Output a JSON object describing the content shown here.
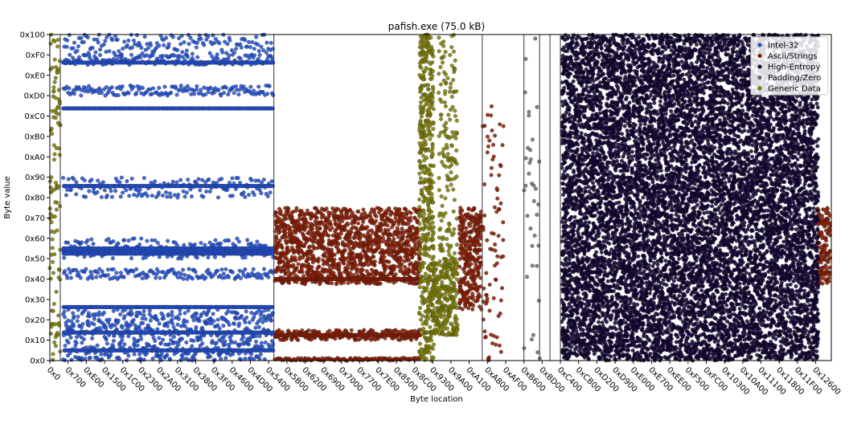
{
  "chart_data": {
    "type": "scatter",
    "title": "pafish.exe (75.0 kB)",
    "xlabel": "Byte location",
    "ylabel": "Byte value",
    "xlim": [
      0,
      76800
    ],
    "ylim": [
      0,
      256
    ],
    "grid": false,
    "legend_position": "top-right",
    "x_tick_labels": [
      "0x0",
      "0x700",
      "0xE00",
      "0x1500",
      "0x1C00",
      "0x2300",
      "0x2A00",
      "0x3100",
      "0x3800",
      "0x3F00",
      "0x4600",
      "0x4D00",
      "0x5400",
      "0x5B00",
      "0x6200",
      "0x6900",
      "0x7000",
      "0x7700",
      "0x7E00",
      "0x8500",
      "0x8C00",
      "0x9300",
      "0x9A00",
      "0xA100",
      "0xA800",
      "0xAF00",
      "0xB600",
      "0xBD00",
      "0xC400",
      "0xCB00",
      "0xD200",
      "0xD900",
      "0xE000",
      "0xE700",
      "0xEE00",
      "0xF500",
      "0xFC00",
      "0x10300",
      "0x10A00",
      "0x11100",
      "0x11800",
      "0x11F00",
      "0x12600"
    ],
    "y_ticks": [
      0,
      16,
      32,
      48,
      64,
      80,
      96,
      112,
      128,
      144,
      160,
      176,
      192,
      208,
      224,
      240,
      256
    ],
    "y_tick_labels": [
      "0x0",
      "0x10",
      "0x20",
      "0x30",
      "0x40",
      "0x50",
      "0x60",
      "0x70",
      "0x80",
      "0x90",
      "0xA0",
      "0xB0",
      "0xC0",
      "0xD0",
      "0xE0",
      "0xF0",
      "0x100"
    ],
    "section_boundaries": [
      1024,
      22016,
      42496,
      46592,
      48128,
      49152,
      50176
    ],
    "series": [
      {
        "name": "Intel-32",
        "color": "#1f4fd6",
        "segments": [
          {
            "x_range": [
              1300,
              21900
            ],
            "bands": [
              [
                0,
                40
              ],
              [
                64,
                72
              ],
              [
                80,
                96
              ],
              [
                128,
                144
              ],
              [
                208,
                216
              ],
              [
                232,
                240
              ],
              [
                240,
                256
              ]
            ],
            "fill": 0.35,
            "lines": [
              8,
              22,
              42,
              84,
              86,
              88,
              137,
              198,
              234
            ]
          }
        ]
      },
      {
        "name": "Ascii/Strings",
        "color": "#8b1a00",
        "segments": [
          {
            "x_range": [
              22100,
              36300
            ],
            "bands": [
              [
                60,
                120
              ],
              [
                16,
                24
              ],
              [
                0,
                2
              ]
            ],
            "fill": 0.85,
            "lines": [
              20,
              64
            ]
          },
          {
            "x_range": [
              40200,
              42300
            ],
            "bands": [
              [
                40,
                120
              ]
            ],
            "fill": 0.9,
            "lines": []
          },
          {
            "x_range": [
              42500,
              44500
            ],
            "bands": [
              [
                0,
                200
              ]
            ],
            "fill": 0.1,
            "lines": []
          },
          {
            "x_range": [
              75400,
              76600
            ],
            "bands": [
              [
                60,
                120
              ]
            ],
            "fill": 0.9,
            "lines": []
          }
        ]
      },
      {
        "name": "High-Entropy",
        "color": "#0d0030",
        "segments": [
          {
            "x_range": [
              50300,
              75500
            ],
            "bands": [
              [
                0,
                256
              ]
            ],
            "fill": 0.92,
            "lines": []
          }
        ]
      },
      {
        "name": "Padding/Zero",
        "color": "#6e6e6e",
        "segments": [
          {
            "x_range": [
              46600,
              48100
            ],
            "bands": [
              [
                0,
                256
              ]
            ],
            "fill": 0.05,
            "lines": []
          }
        ]
      },
      {
        "name": "Generic Data",
        "color": "#7d7d00",
        "segments": [
          {
            "x_range": [
              0,
              1000
            ],
            "bands": [
              [
                0,
                256
              ]
            ],
            "fill": 0.2,
            "lines": []
          },
          {
            "x_range": [
              36300,
              37600
            ],
            "bands": [
              [
                0,
                256
              ]
            ],
            "fill": 0.7,
            "lines": []
          },
          {
            "x_range": [
              37600,
              40000
            ],
            "bands": [
              [
                20,
                80
              ]
            ],
            "fill": 0.9,
            "lines": []
          },
          {
            "x_range": [
              38200,
              40000
            ],
            "bands": [
              [
                80,
                256
              ]
            ],
            "fill": 0.25,
            "lines": []
          }
        ]
      }
    ]
  }
}
